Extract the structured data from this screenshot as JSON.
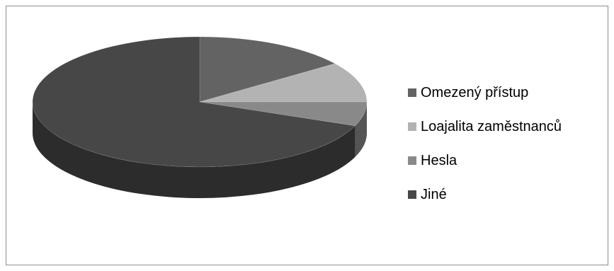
{
  "chart_data": {
    "type": "pie",
    "title": "",
    "categories": [
      "Omezený přístup",
      "Loajalita zaměstnanců",
      "Hesla",
      "Jiné"
    ],
    "values": [
      15,
      10,
      6,
      69
    ],
    "colors": [
      "#636363",
      "#b3b3b3",
      "#898989",
      "#474747"
    ],
    "legend_position": "right",
    "three_d": true
  },
  "legend": {
    "items": [
      {
        "label": "Omezený přístup",
        "color": "#636363"
      },
      {
        "label": "Loajalita zaměstnanců",
        "color": "#b3b3b3"
      },
      {
        "label": "Hesla",
        "color": "#898989"
      },
      {
        "label": "Jiné",
        "color": "#474747"
      }
    ]
  }
}
